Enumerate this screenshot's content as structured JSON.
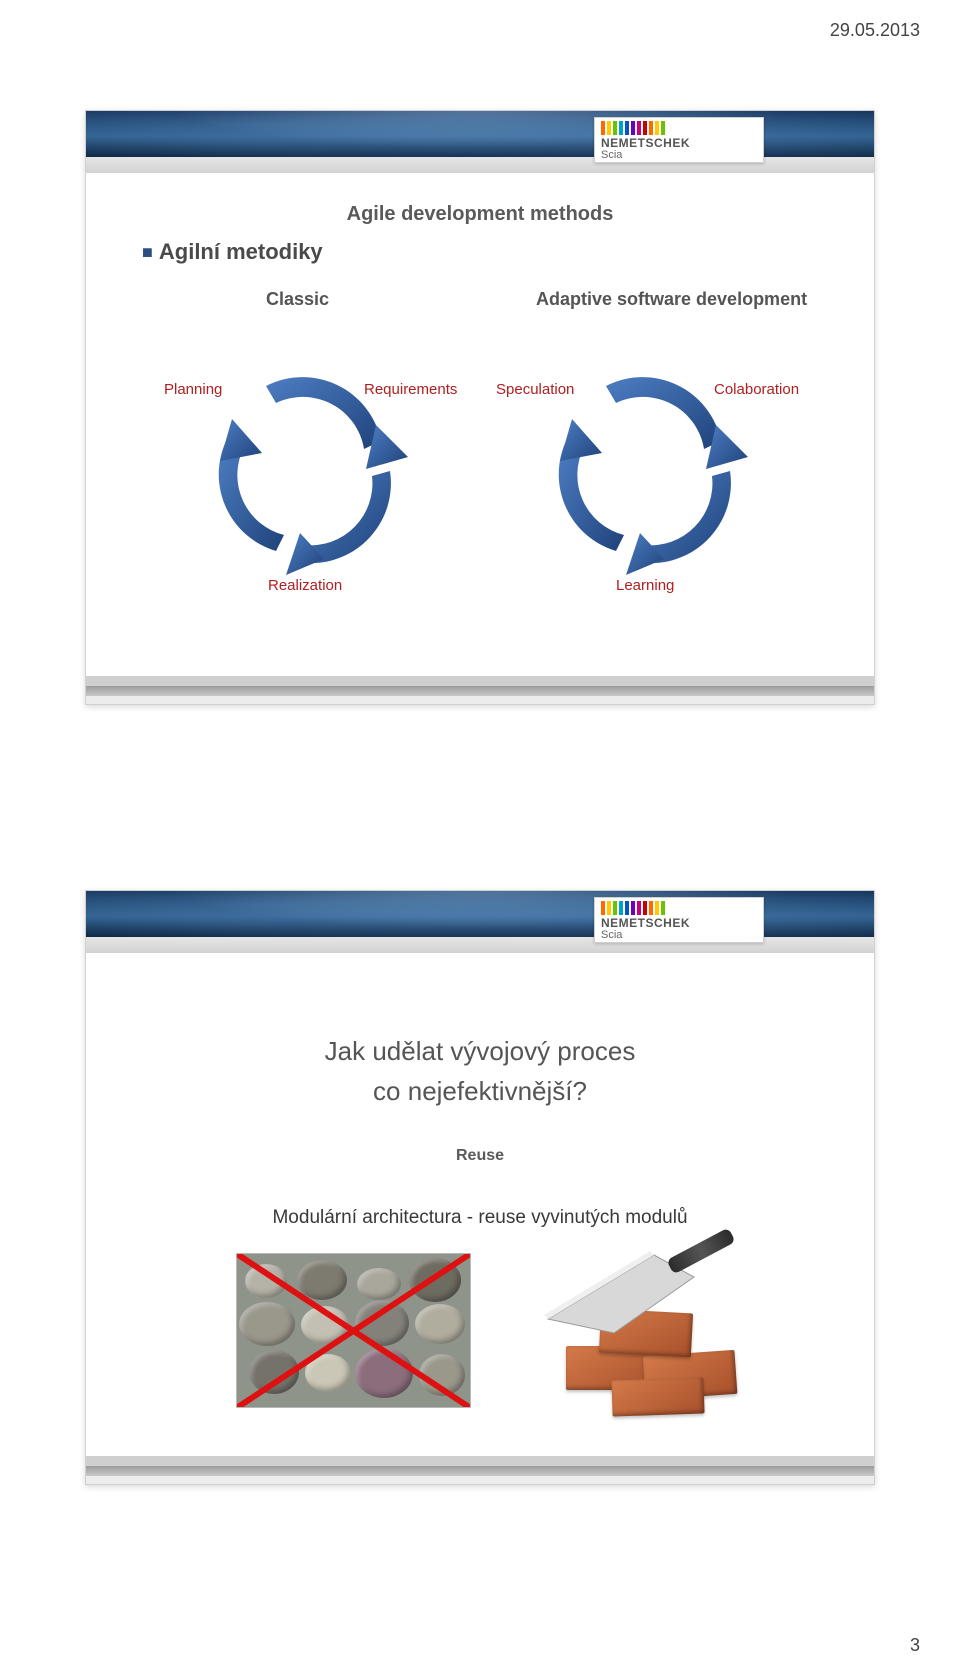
{
  "page": {
    "date": "29.05.2013",
    "number": "3"
  },
  "logo": {
    "name": "NEMETSCHEK",
    "sub": "Scia",
    "bar_colors": [
      "#ff6a00",
      "#ffca00",
      "#69c300",
      "#00a3c7",
      "#0055c7",
      "#6a00c7",
      "#c7007e",
      "#c70000",
      "#ff6a00",
      "#ffca00",
      "#69c300"
    ]
  },
  "slide1": {
    "title": "Agile development methods",
    "bullet": "Agilní metodiky",
    "classic": "Classic",
    "adaptive": "Adaptive software development",
    "cycle_left": {
      "a": "Planning",
      "b": "Requirements",
      "c": "Realization"
    },
    "cycle_right": {
      "a": "Speculation",
      "b": "Colaboration",
      "c": "Learning"
    },
    "cycle_arrow_color": "#2a5a9c",
    "label_color": "#b02020"
  },
  "slide2": {
    "line1": "Jak udělat vývojový proces",
    "line2": "co nejefektivnější?",
    "reuse": "Reuse",
    "modular": "Modulární architectura -  reuse vyvinutých modulů",
    "x_color": "#d01515",
    "brick_color": "#b85a33"
  }
}
